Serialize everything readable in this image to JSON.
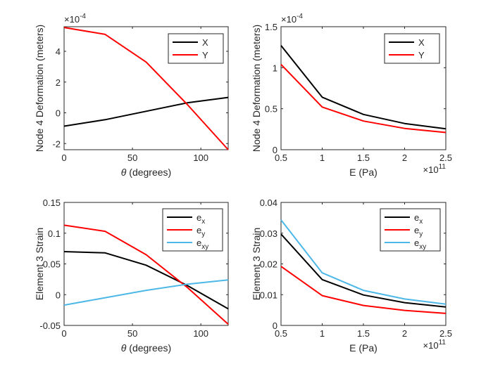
{
  "chart_data": [
    {
      "type": "line",
      "xlabel": "θ (degrees)",
      "ylabel": "Node 4 Deformation (meters)",
      "xlim": [
        0,
        120
      ],
      "ylim": [
        -2.4,
        5.6
      ],
      "xticks": [
        "0",
        "50",
        "100"
      ],
      "xtick_values": [
        0,
        50,
        100
      ],
      "yticks": [
        "-2",
        "0",
        "2",
        "4"
      ],
      "ytick_values": [
        -2,
        0,
        2,
        4
      ],
      "y_exponent": {
        "base": "×10",
        "power": "-4"
      },
      "x_exponent": null,
      "x": [
        0,
        30,
        60,
        90,
        120
      ],
      "series": [
        {
          "name": "X",
          "color": "#000000",
          "values": [
            -0.87,
            -0.45,
            0.1,
            0.65,
            1.0
          ]
        },
        {
          "name": "Y",
          "color": "#ff0000",
          "values": [
            5.55,
            5.1,
            3.3,
            0.55,
            -2.4
          ]
        }
      ]
    },
    {
      "type": "line",
      "xlabel": "E (Pa)",
      "ylabel": "Node 4 Deformation (meters)",
      "xlim": [
        0.5,
        2.5
      ],
      "ylim": [
        0,
        1.5
      ],
      "xticks": [
        "0.5",
        "1",
        "1.5",
        "2",
        "2.5"
      ],
      "xtick_values": [
        0.5,
        1,
        1.5,
        2,
        2.5
      ],
      "yticks": [
        "0",
        "0.5",
        "1",
        "1.5"
      ],
      "ytick_values": [
        0,
        0.5,
        1,
        1.5
      ],
      "y_exponent": {
        "base": "×10",
        "power": "-4"
      },
      "x_exponent": {
        "base": "×10",
        "power": "11"
      },
      "x": [
        0.5,
        1,
        1.5,
        2,
        2.5
      ],
      "series": [
        {
          "name": "X",
          "color": "#000000",
          "values": [
            1.27,
            0.64,
            0.43,
            0.32,
            0.255
          ]
        },
        {
          "name": "Y",
          "color": "#ff0000",
          "values": [
            1.04,
            0.52,
            0.35,
            0.26,
            0.21
          ]
        }
      ]
    },
    {
      "type": "line",
      "xlabel": "θ (degrees)",
      "ylabel": "Element 3 Strain",
      "xlim": [
        0,
        120
      ],
      "ylim": [
        -0.05,
        0.15
      ],
      "xticks": [
        "0",
        "50",
        "100"
      ],
      "xtick_values": [
        0,
        50,
        100
      ],
      "yticks": [
        "-0.05",
        "0",
        "0.05",
        "0.1",
        "0.15"
      ],
      "ytick_values": [
        -0.05,
        0,
        0.05,
        0.1,
        0.15
      ],
      "y_exponent": null,
      "x_exponent": null,
      "x": [
        0,
        30,
        60,
        90,
        120
      ],
      "series": [
        {
          "name": "e",
          "sub": "x",
          "color": "#000000",
          "values": [
            0.07,
            0.068,
            0.048,
            0.015,
            -0.023
          ]
        },
        {
          "name": "e",
          "sub": "y",
          "color": "#ff0000",
          "values": [
            0.113,
            0.103,
            0.065,
            0.012,
            -0.048
          ]
        },
        {
          "name": "e",
          "sub": "xy",
          "color": "#4db8e8",
          "values": [
            -0.017,
            -0.005,
            0.007,
            0.017,
            0.024
          ]
        }
      ]
    },
    {
      "type": "line",
      "xlabel": "E (Pa)",
      "ylabel": "Element 3 Strain",
      "xlim": [
        0.5,
        2.5
      ],
      "ylim": [
        0,
        0.04
      ],
      "xticks": [
        "0.5",
        "1",
        "1.5",
        "2",
        "2.5"
      ],
      "xtick_values": [
        0.5,
        1,
        1.5,
        2,
        2.5
      ],
      "yticks": [
        "0",
        "0.01",
        "0.02",
        "0.03",
        "0.04"
      ],
      "ytick_values": [
        0,
        0.01,
        0.02,
        0.03,
        0.04
      ],
      "y_exponent": null,
      "x_exponent": {
        "base": "×10",
        "power": "11"
      },
      "x": [
        0.5,
        1,
        1.5,
        2,
        2.5
      ],
      "series": [
        {
          "name": "e",
          "sub": "x",
          "color": "#000000",
          "values": [
            0.0297,
            0.0149,
            0.0099,
            0.0074,
            0.006
          ]
        },
        {
          "name": "e",
          "sub": "y",
          "color": "#ff0000",
          "values": [
            0.0192,
            0.0097,
            0.0065,
            0.0049,
            0.0039
          ]
        },
        {
          "name": "e",
          "sub": "xy",
          "color": "#4db8e8",
          "values": [
            0.0343,
            0.0171,
            0.0114,
            0.0086,
            0.0069
          ]
        }
      ]
    }
  ]
}
